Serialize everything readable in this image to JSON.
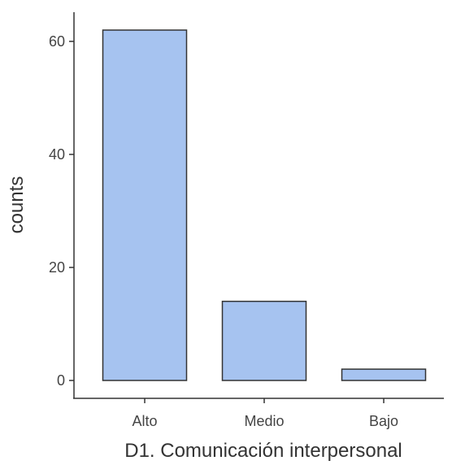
{
  "chart_data": {
    "type": "bar",
    "categories": [
      "Alto",
      "Medio",
      "Bajo"
    ],
    "values": [
      62,
      14,
      2
    ],
    "xlabel": "D1. Comunicación interpersonal",
    "ylabel": "counts",
    "ylim": [
      0,
      62
    ],
    "yticks": [
      0,
      20,
      40,
      60
    ],
    "ytick_labels": [
      "0",
      "20",
      "40",
      "60"
    ],
    "bar_color": "#a6c3f0",
    "bar_edge_color": "#333333",
    "grid": false
  }
}
